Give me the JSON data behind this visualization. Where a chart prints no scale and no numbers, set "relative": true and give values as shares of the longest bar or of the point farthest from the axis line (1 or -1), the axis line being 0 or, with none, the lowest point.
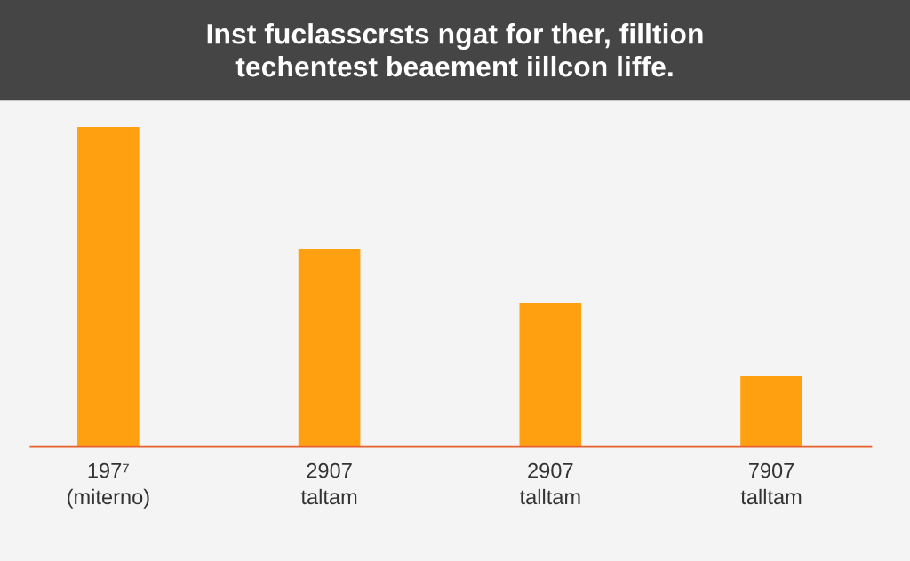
{
  "chart_data": {
    "type": "bar",
    "title": "Inst fuclasscrsts ngat for ther, filltion\ntechentest beaement iillcon liffe.",
    "categories": [
      "197⁷\n(miterno)",
      "2907\ntaltam",
      "2907\ntalltam",
      "7907\ntalltam"
    ],
    "values": [
      1,
      0.62,
      0.45,
      0.22
    ],
    "color": "#ffa010",
    "relative": true
  }
}
